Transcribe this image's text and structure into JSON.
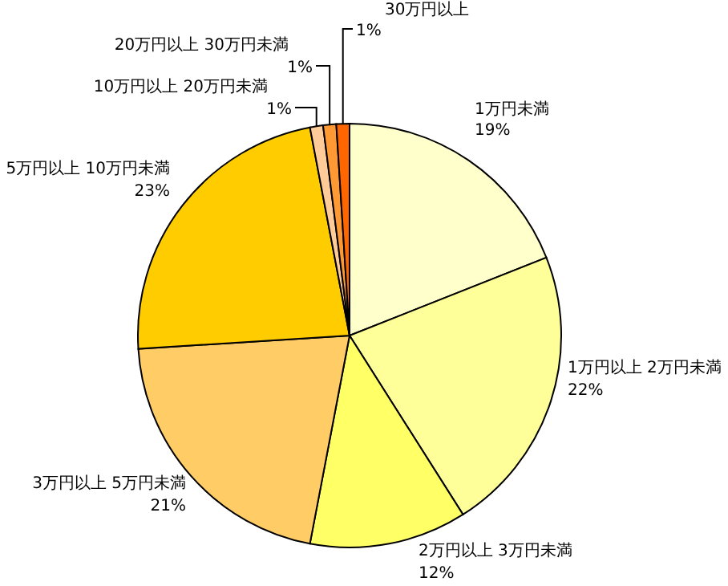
{
  "chart_data": {
    "type": "pie",
    "categories": [
      "1万円未満",
      "1万円以上 2万円未満",
      "2万円以上 3万円未満",
      "3万円以上 5万円未満",
      "5万円以上 10万円未満",
      "10万円以上 20万円未満",
      "20万円以上 30万円未満",
      "30万円以上"
    ],
    "values": [
      19,
      22,
      12,
      21,
      23,
      1,
      1,
      1
    ],
    "colors": [
      "#ffffcc",
      "#ffff99",
      "#ffff66",
      "#ffcc66",
      "#ffcc00",
      "#ffcc99",
      "#ff9933",
      "#ff6600"
    ],
    "value_labels": [
      "19%",
      "22%",
      "12%",
      "21%",
      "23%",
      "1%",
      "1%",
      "1%"
    ]
  }
}
